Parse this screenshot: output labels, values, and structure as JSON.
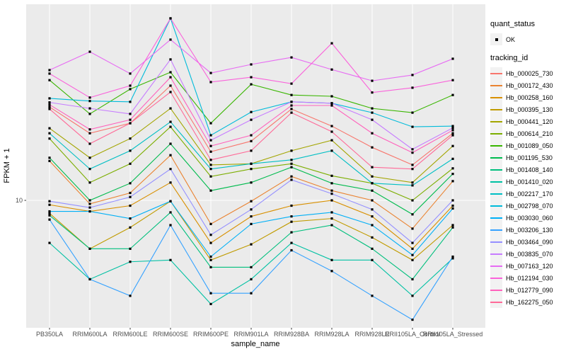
{
  "axis": {
    "x_title": "sample_name",
    "y_title": "FPKM + 1",
    "y_ticks": [
      {
        "label": "10",
        "value": 10
      }
    ]
  },
  "legend": {
    "quant_status_title": "quant_status",
    "quant_status_items": [
      {
        "label": "OK"
      }
    ],
    "tracking_id_title": "tracking_id"
  },
  "colors": {
    "panel_background": "#EBEBEB",
    "grid_line": "#FFFFFF",
    "tick_text": "#4D4D4D",
    "marker": "#000000",
    "legend_key_background": "#F2F2F2"
  },
  "chart_data": {
    "type": "line",
    "xlabel": "sample_name",
    "ylabel": "FPKM + 1",
    "y_scale": "log10",
    "ylim_approx": [
      2.3,
      97
    ],
    "grid": "on",
    "legend_position": "right",
    "point_shape": "small black square",
    "categories": [
      "PB350LA",
      "RRIM600LA",
      "RRIM600LE",
      "RRIM600SE",
      "RRIM600PE",
      "RRIM901LA",
      "RRIM928BA",
      "RRIM928LA",
      "RRIM928LE",
      "RRII105LA_Control",
      "RRII105LA_Stressed"
    ],
    "series": [
      {
        "name": "Hb_000025_730",
        "color": "#F8766D",
        "values": [
          29.6,
          21.8,
          24.5,
          37.9,
          17.6,
          19.9,
          28.9,
          23.7,
          18.5,
          15.1,
          21.8
        ]
      },
      {
        "name": "Hb_000172_430",
        "color": "#EA8331",
        "values": [
          15.8,
          9.6,
          10.9,
          16.9,
          7.6,
          9.9,
          13.2,
          11.2,
          10.0,
          7.2,
          12.5
        ]
      },
      {
        "name": "Hb_000258_160",
        "color": "#D89000",
        "values": [
          9.5,
          8.8,
          9.4,
          12.3,
          6.1,
          8.3,
          9.4,
          10.0,
          8.3,
          5.7,
          9.4
        ]
      },
      {
        "name": "Hb_000395_130",
        "color": "#C09B00",
        "values": [
          8.6,
          5.7,
          7.3,
          9.9,
          5.0,
          6.0,
          7.8,
          8.1,
          6.5,
          5.0,
          7.5
        ]
      },
      {
        "name": "Hb_000441_120",
        "color": "#A3A500",
        "values": [
          23.1,
          16.4,
          20.5,
          29.1,
          15.1,
          15.3,
          17.8,
          20.1,
          13.2,
          12.3,
          18.8
        ]
      },
      {
        "name": "Hb_000614_210",
        "color": "#7CAE00",
        "values": [
          20.5,
          12.3,
          15.3,
          23.5,
          13.2,
          14.4,
          15.3,
          13.3,
          12.2,
          10.0,
          14.5
        ]
      },
      {
        "name": "Hb_001089_050",
        "color": "#39B600",
        "values": [
          40.4,
          27.3,
          36.4,
          44.3,
          24.5,
          38.5,
          34.0,
          33.5,
          29.1,
          27.7,
          34.0
        ]
      },
      {
        "name": "Hb_001195_530",
        "color": "#00BB4E",
        "values": [
          16.4,
          10.0,
          12.2,
          19.3,
          11.2,
          12.3,
          14.7,
          12.2,
          11.2,
          8.5,
          13.6
        ]
      },
      {
        "name": "Hb_001408_140",
        "color": "#00BF7D",
        "values": [
          8.4,
          5.7,
          5.7,
          8.7,
          4.6,
          4.6,
          6.9,
          7.5,
          5.7,
          4.0,
          7.3
        ]
      },
      {
        "name": "Hb_001410_020",
        "color": "#00C1A3",
        "values": [
          6.1,
          4.0,
          4.9,
          5.0,
          3.0,
          4.0,
          6.1,
          5.0,
          5.0,
          3.3,
          5.1
        ]
      },
      {
        "name": "Hb_002217_170",
        "color": "#00BFC4",
        "values": [
          21.8,
          14.4,
          17.8,
          24.9,
          14.4,
          15.3,
          16.0,
          17.8,
          12.2,
          11.9,
          16.2
        ]
      },
      {
        "name": "Hb_002798_070",
        "color": "#00BBDA",
        "values": [
          32.7,
          31.7,
          31.4,
          82.8,
          21.3,
          27.9,
          31.4,
          30.9,
          27.7,
          23.5,
          23.7
        ]
      },
      {
        "name": "Hb_003030_060",
        "color": "#00B0F6",
        "values": [
          8.8,
          8.8,
          8.1,
          9.9,
          5.2,
          7.6,
          8.3,
          8.7,
          7.5,
          5.3,
          9.1
        ]
      },
      {
        "name": "Hb_003206_130",
        "color": "#35A2FF",
        "values": [
          8.0,
          4.0,
          3.3,
          7.5,
          3.4,
          3.4,
          5.6,
          4.4,
          3.3,
          2.5,
          5.2
        ]
      },
      {
        "name": "Hb_003464_090",
        "color": "#9590FF",
        "values": [
          9.9,
          9.2,
          10.4,
          14.4,
          6.7,
          9.0,
          12.7,
          10.8,
          9.0,
          6.1,
          10.0
        ]
      },
      {
        "name": "Hb_003835_070",
        "color": "#C77CFF",
        "values": [
          31.2,
          29.1,
          27.3,
          51.4,
          20.1,
          25.5,
          31.4,
          30.9,
          25.5,
          18.1,
          23.2
        ]
      },
      {
        "name": "Hb_007163_120",
        "color": "#E76BF3",
        "values": [
          45.4,
          56.2,
          43.6,
          64.7,
          43.9,
          48.5,
          52.6,
          45.7,
          40.1,
          42.9,
          51.8
        ]
      },
      {
        "name": "Hb_012194_030",
        "color": "#FA62DB",
        "values": [
          43.6,
          33.0,
          37.9,
          82.8,
          39.5,
          41.8,
          38.8,
          62.0,
          35.0,
          37.0,
          40.4
        ]
      },
      {
        "name": "Hb_012779_090",
        "color": "#FF62BC",
        "values": [
          30.4,
          22.8,
          25.5,
          41.8,
          18.8,
          21.3,
          30.1,
          30.1,
          21.8,
          17.4,
          22.6
        ]
      },
      {
        "name": "Hb_162275_050",
        "color": "#FF6A98",
        "values": [
          28.9,
          19.3,
          24.5,
          35.2,
          16.0,
          17.8,
          27.7,
          22.2,
          14.7,
          14.4,
          21.3
        ]
      }
    ]
  }
}
